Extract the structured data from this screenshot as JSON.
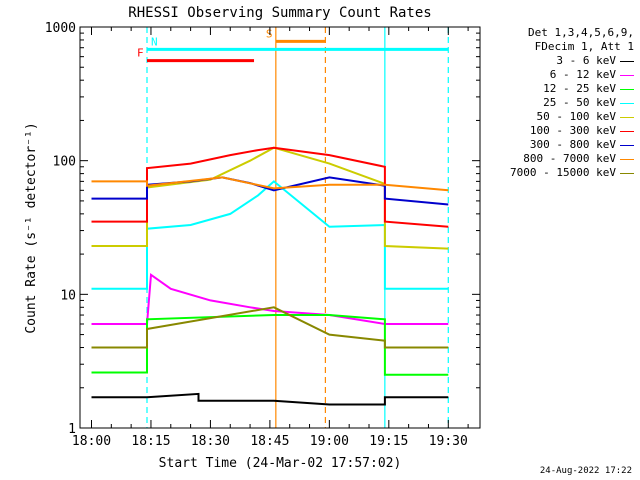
{
  "chart_data": {
    "type": "line",
    "title": "RHESSI Observing Summary Count Rates",
    "xlabel": "Start Time (24-Mar-02 17:57:02)",
    "ylabel": "Count Rate (s⁻¹ detector⁻¹)",
    "ylog": true,
    "ylim": [
      1,
      1000
    ],
    "xlim": [
      -2.9,
      98
    ],
    "x_units": "minutes after 18:00",
    "x_ticks": [
      "18:00",
      "18:15",
      "18:30",
      "18:45",
      "19:00",
      "19:15",
      "19:30"
    ],
    "y_ticks": [
      "1",
      "10",
      "100",
      "1000"
    ],
    "legend_header": [
      "Det 1,3,4,5,6,9,",
      "FDecim 1, Att 1"
    ],
    "series": [
      {
        "name": "3 - 6 keV",
        "color": "#000000",
        "x": [
          0,
          14,
          14,
          27,
          27,
          46,
          60,
          74,
          74,
          90
        ],
        "y": [
          1.7,
          1.7,
          1.7,
          1.8,
          1.6,
          1.6,
          1.5,
          1.5,
          1.7,
          1.7
        ]
      },
      {
        "name": "6 - 12 keV",
        "color": "#ff00ff",
        "x": [
          0,
          14,
          15,
          20,
          30,
          40,
          46,
          60,
          74,
          90
        ],
        "y": [
          6.0,
          6.0,
          14.0,
          11.0,
          9.0,
          8.0,
          7.5,
          7.0,
          6.0,
          6.0
        ]
      },
      {
        "name": "12 - 25 keV",
        "color": "#00ff00",
        "x": [
          0,
          14,
          14,
          46,
          60,
          74,
          74,
          90
        ],
        "y": [
          2.6,
          2.6,
          6.5,
          7.0,
          7.0,
          6.5,
          2.5,
          2.5
        ]
      },
      {
        "name": "25 - 50 keV",
        "color": "#00ffff",
        "x": [
          0,
          14,
          14,
          25,
          35,
          42,
          46,
          60,
          74,
          74,
          90
        ],
        "y": [
          11,
          11,
          31,
          33,
          40,
          55,
          70,
          32,
          33,
          11,
          11
        ]
      },
      {
        "name": "50 - 100 keV",
        "color": "#cccc00",
        "x": [
          0,
          14,
          14,
          30,
          40,
          46,
          60,
          74,
          74,
          90
        ],
        "y": [
          23,
          23,
          63,
          72,
          100,
          125,
          95,
          67,
          23,
          22
        ]
      },
      {
        "name": "100 - 300 keV",
        "color": "#ff0000",
        "x": [
          0,
          14,
          14,
          25,
          35,
          42,
          46,
          60,
          74,
          74,
          90
        ],
        "y": [
          35,
          35,
          88,
          95,
          110,
          120,
          125,
          110,
          90,
          35,
          32
        ]
      },
      {
        "name": "300 - 800 keV",
        "color": "#0000cc",
        "x": [
          0,
          14,
          14,
          25,
          33,
          40,
          46,
          60,
          74,
          74,
          90
        ],
        "y": [
          52,
          52,
          66,
          70,
          75,
          68,
          60,
          75,
          65,
          52,
          47
        ]
      },
      {
        "name": "800 - 7000 keV",
        "color": "#ff8800",
        "x": [
          0,
          14,
          14,
          33,
          46,
          60,
          74,
          90
        ],
        "y": [
          70,
          70,
          65,
          75,
          62,
          66,
          66,
          60
        ]
      },
      {
        "name": "7000 - 15000 keV",
        "color": "#888800",
        "x": [
          0,
          14,
          14,
          46,
          60,
          74,
          74,
          90
        ],
        "y": [
          4.0,
          4.0,
          5.5,
          8.0,
          5.0,
          4.5,
          4.0,
          4.0
        ]
      }
    ],
    "annotations": [
      {
        "label": "N",
        "color": "#00ffff",
        "x1": 14,
        "x2": 90,
        "y": 680
      },
      {
        "label": "F",
        "color": "#ff0000",
        "x1": 14,
        "x2": 41,
        "y": 560
      },
      {
        "label": "S",
        "color": "#ff8800",
        "x1": 46.5,
        "x2": 59,
        "y": 780
      }
    ],
    "vlines": [
      {
        "x": 14,
        "color": "#00ffff",
        "style": "dashed"
      },
      {
        "x": 46.5,
        "color": "#ff8800",
        "style": "solid"
      },
      {
        "x": 59,
        "color": "#ff8800",
        "style": "dashed"
      },
      {
        "x": 74,
        "color": "#00ffff",
        "style": "solid"
      },
      {
        "x": 90,
        "color": "#00ffff",
        "style": "dashed"
      }
    ]
  },
  "footer_date": "24-Aug-2022 17:22"
}
